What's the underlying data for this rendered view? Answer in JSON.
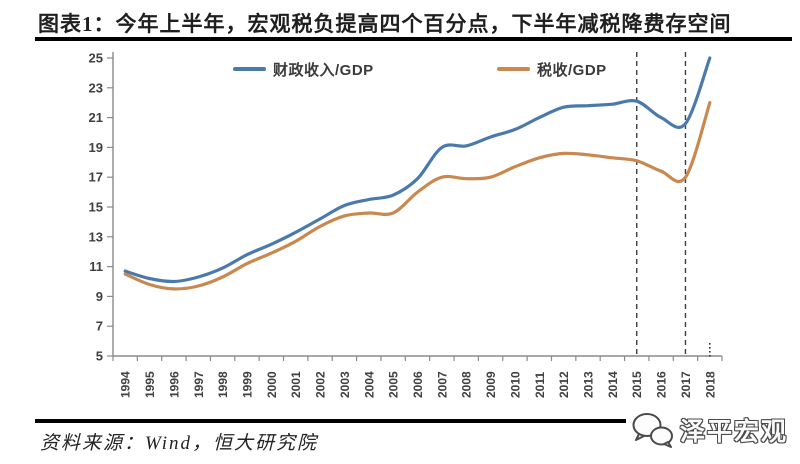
{
  "title": "图表1：今年上半年，宏观税负提高四个百分点，下半年减税降费存空间",
  "footer": {
    "source_note": "资料来源：Wind，恒大研究院"
  },
  "watermark": {
    "label": "泽平宏观",
    "icon": "wechat-icon"
  },
  "colors": {
    "fiscal_line": "#4a7aab",
    "tax_line": "#c8884f",
    "axis": "#8a8a8a",
    "tick_text": "#404040",
    "dashed_line": "#3d3d3d",
    "divider": "#000000",
    "title_text": "#1f1f1f"
  },
  "chart_data": {
    "type": "line",
    "x": [
      "1994",
      "1995",
      "1996",
      "1997",
      "1998",
      "1999",
      "2000",
      "2001",
      "2002",
      "2003",
      "2004",
      "2005",
      "2006",
      "2007",
      "2008",
      "2009",
      "2010",
      "2011",
      "2012",
      "2013",
      "2014",
      "2015",
      "2016",
      "2017",
      "2018"
    ],
    "series": [
      {
        "name": "财政收入/GDP",
        "color": "#4a7aab",
        "values": [
          10.7,
          10.2,
          10.0,
          10.3,
          10.9,
          11.8,
          12.5,
          13.3,
          14.2,
          15.1,
          15.5,
          15.8,
          16.9,
          19.0,
          19.1,
          19.7,
          20.2,
          21.0,
          21.7,
          21.8,
          21.9,
          22.1,
          21.0,
          20.6,
          25.0
        ]
      },
      {
        "name": "税收/GDP",
        "color": "#c8884f",
        "values": [
          10.5,
          9.8,
          9.5,
          9.7,
          10.3,
          11.2,
          11.9,
          12.7,
          13.7,
          14.4,
          14.6,
          14.6,
          16.0,
          17.0,
          16.9,
          17.0,
          17.7,
          18.3,
          18.6,
          18.5,
          18.3,
          18.1,
          17.4,
          17.0,
          22.0
        ]
      }
    ],
    "title": "",
    "xlabel": "",
    "ylabel": "",
    "ylim": [
      5,
      25
    ],
    "yticks": [
      5,
      7,
      9,
      11,
      13,
      15,
      17,
      19,
      21,
      23,
      25
    ],
    "grid": false,
    "legend_position": "top-inside",
    "vlines": [
      "2015",
      "2017"
    ],
    "axis_end_marker_year": "2018"
  }
}
